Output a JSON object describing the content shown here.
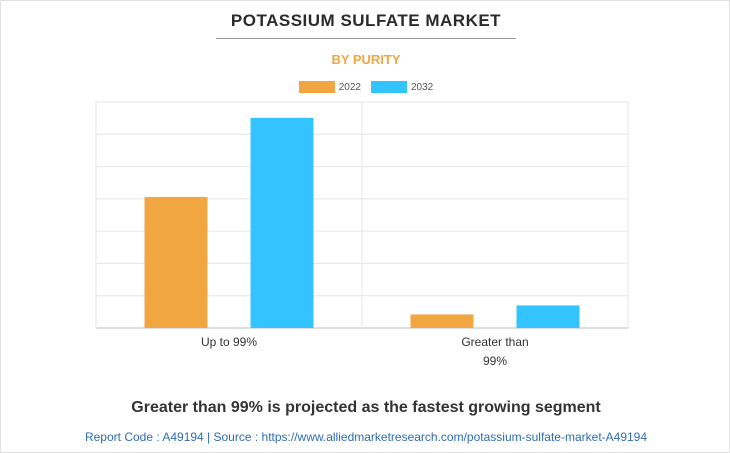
{
  "header": {
    "title": "POTASSIUM SULFATE MARKET",
    "subtitle": "BY PURITY"
  },
  "chart_data": {
    "type": "bar",
    "categories": [
      "Up to 99%",
      "Greater than 99%"
    ],
    "category_label_lines": [
      [
        "Up to 99%"
      ],
      [
        "Greater than",
        "99%"
      ]
    ],
    "series": [
      {
        "name": "2022",
        "color": "#f2a642",
        "values": [
          0.58,
          0.06
        ]
      },
      {
        "name": "2032",
        "color": "#33c4ff",
        "values": [
          0.93,
          0.1
        ]
      }
    ],
    "ylim": [
      0,
      1
    ],
    "grid": true,
    "legend_position": "top-center"
  },
  "footer": {
    "takeaway": "Greater than 99% is projected as the fastest growing segment",
    "source": "Report Code : A49194  |  Source : https://www.alliedmarketresearch.com/potassium-sulfate-market-A49194"
  }
}
